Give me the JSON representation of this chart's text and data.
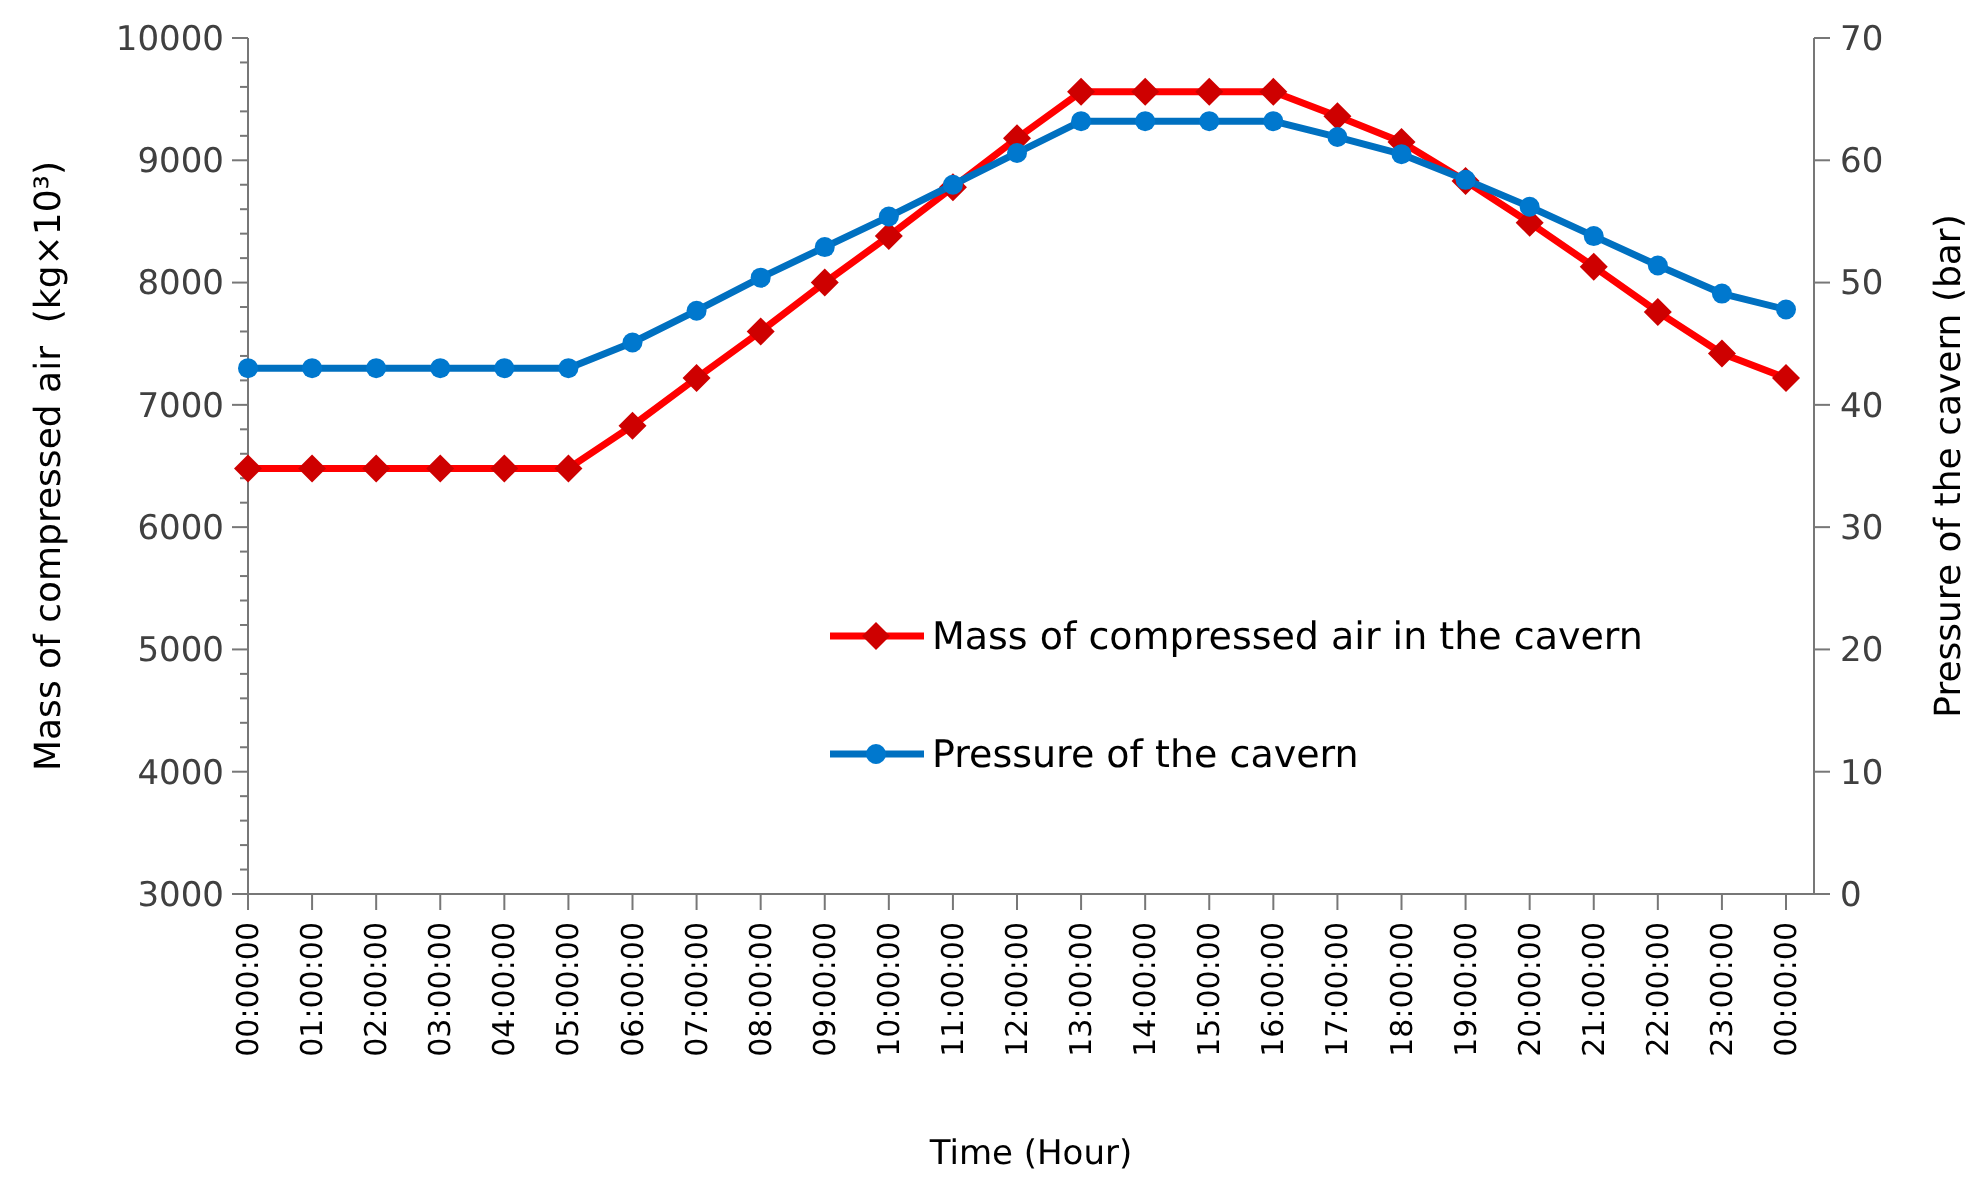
{
  "chart_data": {
    "type": "line",
    "xlabel": "Time (Hour)",
    "ylabel": "Mass of compressed air  (kg×10³)",
    "y2label": "Pressure of the cavern (bar)",
    "categories": [
      "00:00:00",
      "01:00:00",
      "02:00:00",
      "03:00:00",
      "04:00:00",
      "05:00:00",
      "06:00:00",
      "07:00:00",
      "08:00:00",
      "09:00:00",
      "10:00:00",
      "11:00:00",
      "12:00:00",
      "13:00:00",
      "14:00:00",
      "15:00:00",
      "16:00:00",
      "17:00:00",
      "18:00:00",
      "19:00:00",
      "20:00:00",
      "21:00:00",
      "22:00:00",
      "23:00:00",
      "00:00:00"
    ],
    "series": [
      {
        "name": "Mass of compressed air in the cavern",
        "color": "#ff0000",
        "marker": "diamond",
        "values": [
          6480,
          6480,
          6480,
          6480,
          6480,
          6480,
          6830,
          7220,
          7600,
          8000,
          8380,
          8780,
          9180,
          9560,
          9560,
          9560,
          9560,
          9360,
          9150,
          8830,
          8490,
          8130,
          7760,
          7420,
          7220
        ]
      },
      {
        "name": "Pressure of the cavern",
        "color": "#0070c0",
        "marker": "circle",
        "axis": "y2",
        "values": [
          43.0,
          43.0,
          43.0,
          43.0,
          43.0,
          43.0,
          45.1,
          47.7,
          50.4,
          52.9,
          55.4,
          58.0,
          60.6,
          63.2,
          63.2,
          63.2,
          63.2,
          61.9,
          60.5,
          58.4,
          56.2,
          53.8,
          51.4,
          49.1,
          47.8
        ]
      }
    ],
    "ylim": [
      3000,
      10000
    ],
    "yticks": [
      3000,
      4000,
      5000,
      6000,
      7000,
      8000,
      9000,
      10000
    ],
    "y2lim": [
      0,
      70
    ],
    "y2ticks": [
      0,
      10,
      20,
      30,
      40,
      50,
      60,
      70
    ],
    "grid": false,
    "legend": "right",
    "line_style": "solid"
  }
}
